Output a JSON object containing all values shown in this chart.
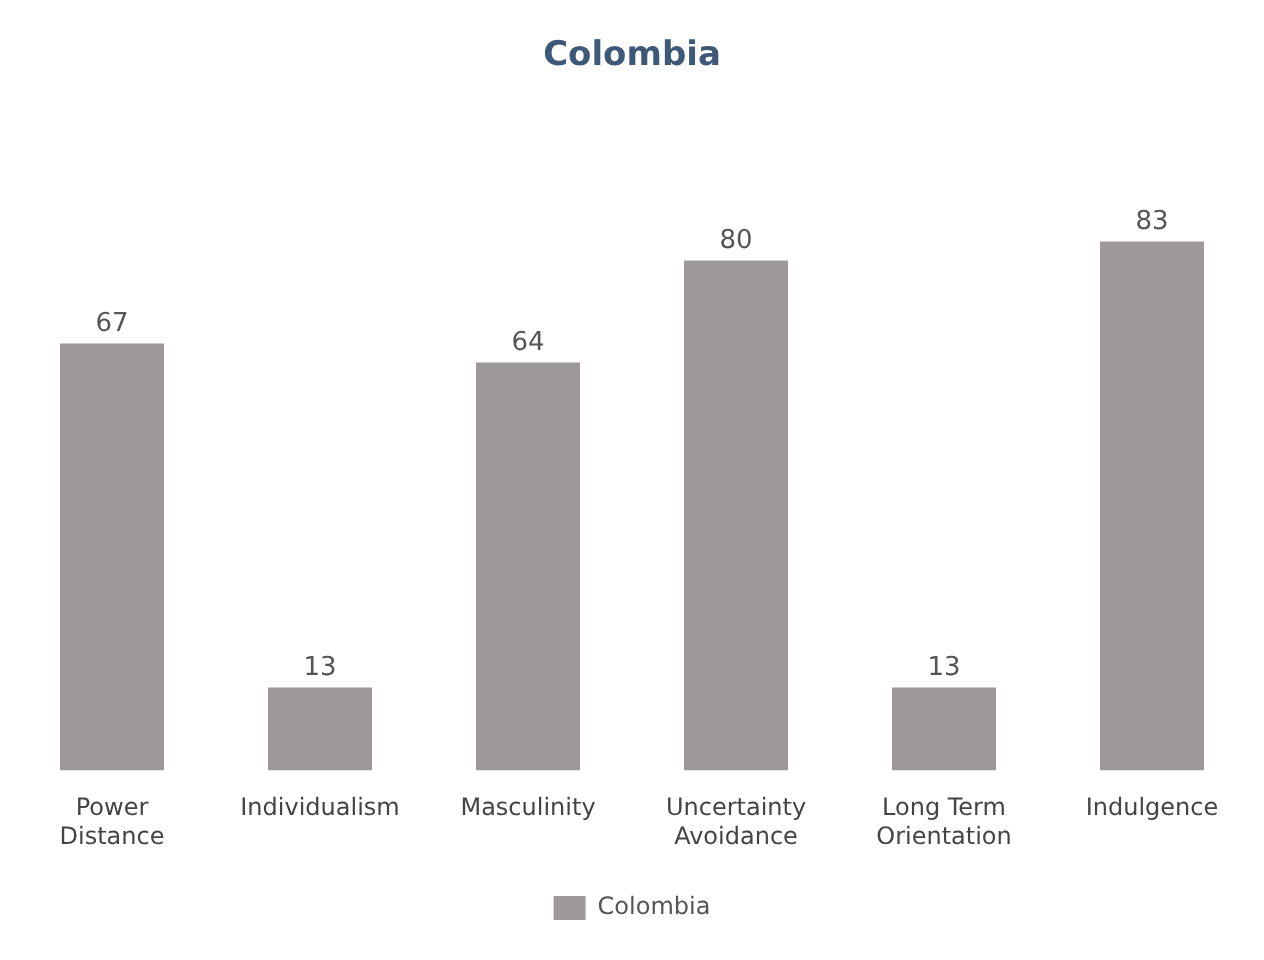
{
  "chart_data": {
    "type": "bar",
    "title": "Colombia",
    "categories": [
      "Power Distance",
      "Individualism",
      "Masculinity",
      "Uncertainty Avoidance",
      "Long Term Orientation",
      "Indulgence"
    ],
    "series": [
      {
        "name": "Colombia",
        "color": "#9d999b",
        "values": [
          67,
          13,
          64,
          80,
          13,
          83
        ]
      }
    ],
    "data_labels": true,
    "grid": false,
    "legend": "bottom",
    "tick_labels": "x"
  }
}
